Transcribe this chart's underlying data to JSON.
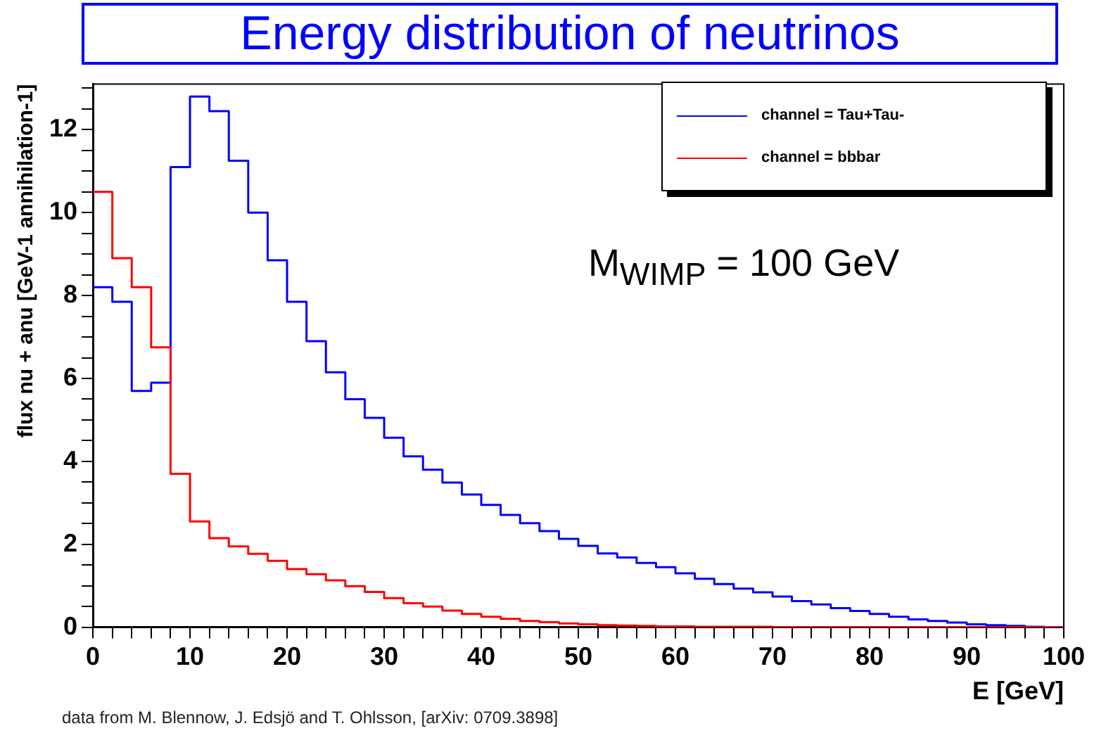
{
  "chart_data": {
    "type": "histogram",
    "title": "Energy distribution of neutrinos",
    "xlabel": "E [GeV]",
    "ylabel": "flux nu + anu [GeV-1 annihilation-1]",
    "bins": [
      0,
      2,
      4,
      6,
      8,
      10,
      12,
      14,
      16,
      18,
      20,
      22,
      24,
      26,
      28,
      30,
      32,
      34,
      36,
      38,
      40,
      42,
      44,
      46,
      48,
      50,
      52,
      54,
      56,
      58,
      60,
      62,
      64,
      66,
      68,
      70,
      72,
      74,
      76,
      78,
      80,
      82,
      84,
      86,
      88,
      90,
      92,
      94,
      96,
      98,
      100
    ],
    "series": [
      {
        "name": "channel = Tau+Tau-",
        "color": "#0000ff",
        "values": [
          8.2,
          7.85,
          5.7,
          5.9,
          11.1,
          12.8,
          12.45,
          11.25,
          10,
          8.85,
          7.85,
          6.9,
          6.15,
          5.5,
          5.05,
          4.57,
          4.12,
          3.8,
          3.49,
          3.2,
          2.95,
          2.71,
          2.51,
          2.32,
          2.13,
          1.96,
          1.78,
          1.68,
          1.55,
          1.45,
          1.3,
          1.17,
          1.04,
          0.93,
          0.84,
          0.74,
          0.63,
          0.55,
          0.46,
          0.39,
          0.32,
          0.25,
          0.19,
          0.15,
          0.11,
          0.07,
          0.05,
          0.03,
          0.01,
          0
        ]
      },
      {
        "name": "channel = bbbar",
        "color": "#ff0000",
        "values": [
          10.5,
          8.9,
          8.2,
          6.75,
          3.7,
          2.55,
          2.15,
          1.95,
          1.77,
          1.6,
          1.4,
          1.28,
          1.13,
          0.99,
          0.85,
          0.7,
          0.58,
          0.5,
          0.4,
          0.32,
          0.25,
          0.2,
          0.15,
          0.12,
          0.09,
          0.07,
          0.05,
          0.04,
          0.03,
          0.02,
          0.02,
          0.01,
          0.01,
          0.01,
          0.01,
          0,
          0,
          0,
          0,
          0,
          0,
          0,
          0,
          0,
          0,
          0,
          0,
          0,
          0,
          0
        ]
      }
    ],
    "xlim": [
      0,
      100
    ],
    "xticks": [
      0,
      {
        "value": 2,
        "label": null
      },
      {
        "value": 4,
        "label": null
      },
      {
        "value": 6,
        "label": null
      },
      {
        "value": 8,
        "label": null
      },
      10,
      {
        "value": 12,
        "label": null
      },
      {
        "value": 14,
        "label": null
      },
      {
        "value": 16,
        "label": null
      },
      {
        "value": 18,
        "label": null
      },
      20,
      {
        "value": 22,
        "label": null
      },
      {
        "value": 24,
        "label": null
      },
      {
        "value": 26,
        "label": null
      },
      {
        "value": 28,
        "label": null
      },
      30,
      {
        "value": 32,
        "label": null
      },
      {
        "value": 34,
        "label": null
      },
      {
        "value": 36,
        "label": null
      },
      {
        "value": 38,
        "label": null
      },
      40,
      {
        "value": 42,
        "label": null
      },
      {
        "value": 44,
        "label": null
      },
      {
        "value": 46,
        "label": null
      },
      {
        "value": 48,
        "label": null
      },
      50,
      {
        "value": 52,
        "label": null
      },
      {
        "value": 54,
        "label": null
      },
      {
        "value": 56,
        "label": null
      },
      {
        "value": 58,
        "label": null
      },
      60,
      {
        "value": 62,
        "label": null
      },
      {
        "value": 64,
        "label": null
      },
      {
        "value": 66,
        "label": null
      },
      {
        "value": 68,
        "label": null
      },
      70,
      {
        "value": 72,
        "label": null
      },
      {
        "value": 74,
        "label": null
      },
      {
        "value": 76,
        "label": null
      },
      {
        "value": 78,
        "label": null
      },
      80,
      {
        "value": 82,
        "label": null
      },
      {
        "value": 84,
        "label": null
      },
      {
        "value": 86,
        "label": null
      },
      {
        "value": 88,
        "label": null
      },
      90,
      {
        "value": 92,
        "label": null
      },
      {
        "value": 94,
        "label": null
      },
      {
        "value": 96,
        "label": null
      },
      {
        "value": 98,
        "label": null
      },
      100
    ],
    "ylim": [
      0,
      13.1
    ],
    "yticks": [
      0,
      {
        "value": 0.5,
        "label": null
      },
      {
        "value": 1,
        "label": null
      },
      {
        "value": 1.5,
        "label": null
      },
      2,
      {
        "value": 2.5,
        "label": null
      },
      {
        "value": 3,
        "label": null
      },
      {
        "value": 3.5,
        "label": null
      },
      4,
      {
        "value": 4.5,
        "label": null
      },
      {
        "value": 5,
        "label": null
      },
      {
        "value": 5.5,
        "label": null
      },
      6,
      {
        "value": 6.5,
        "label": null
      },
      {
        "value": 7,
        "label": null
      },
      {
        "value": 7.5,
        "label": null
      },
      8,
      {
        "value": 8.5,
        "label": null
      },
      {
        "value": 9,
        "label": null
      },
      {
        "value": 9.5,
        "label": null
      },
      10,
      {
        "value": 10.5,
        "label": null
      },
      {
        "value": 11,
        "label": null
      },
      {
        "value": 11.5,
        "label": null
      },
      12,
      {
        "value": 12.5,
        "label": null
      },
      {
        "value": 13,
        "label": null
      }
    ],
    "legend": "top right",
    "annotations": [
      "M$_{WIMP}$ = 100 GeV",
      "data from M. Blennow, J. Edsjö and T. Ohlsson, [arXiv: 0709.3898]"
    ]
  }
}
